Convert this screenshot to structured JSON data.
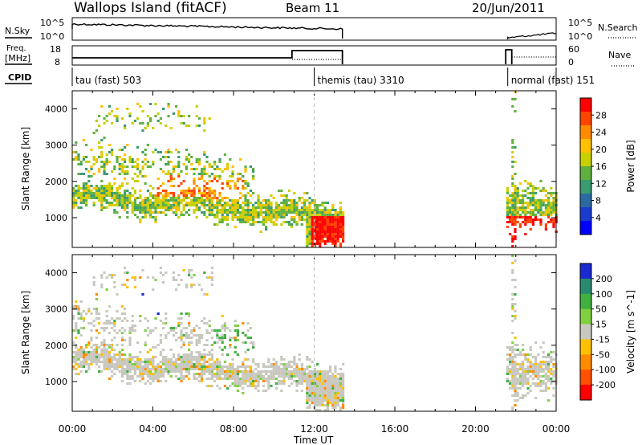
{
  "header": {
    "station": "Wallops Island (fitACF)",
    "beam": "Beam 11",
    "date": "20/Jun/2011"
  },
  "top_panels": {
    "nsky_label": "N.Sky",
    "nsearch_label": "N.Search",
    "log_top": "10^5",
    "log_bottom": "10^0",
    "freq_label": "Freq.",
    "freq_unit": "[MHz]",
    "freq_ticks": [
      "18",
      "8"
    ],
    "nave_label": "Nave",
    "nave_ticks": [
      "60",
      "0"
    ],
    "cpid_label": "CPID",
    "cpid_segments": [
      {
        "label": "tau (fast) 503",
        "start_h": 0,
        "end_h": 12
      },
      {
        "label": "themis (tau) 3310",
        "start_h": 12,
        "end_h": 21.6
      },
      {
        "label": "normal (fast) 151",
        "start_h": 21.6,
        "end_h": 24
      }
    ]
  },
  "axes": {
    "ylabel": "Slant Range [km]",
    "yticks": [
      "4000",
      "3000",
      "2000",
      "1000"
    ],
    "xticks": [
      "00:00",
      "04:00",
      "08:00",
      "12:00",
      "16:00",
      "20:00",
      "00:00"
    ],
    "xlabel": "Time UT"
  },
  "power_scale": {
    "label": "Power [dB]",
    "ticks": [
      "28",
      "24",
      "20",
      "16",
      "12",
      "8",
      "4"
    ],
    "colors": [
      "#ff0000",
      "#ff4400",
      "#ff8c00",
      "#ffc000",
      "#c8d000",
      "#60b040",
      "#3a9a70",
      "#2a6aa0",
      "#1a3ad0",
      "#0000ff"
    ]
  },
  "velocity_scale": {
    "label": "Velocity [m s^-1]",
    "ticks": [
      "200",
      "100",
      "50",
      "15",
      "-15",
      "-50",
      "-100",
      "-200"
    ],
    "colors": [
      "#1a2ad0",
      "#2a8a70",
      "#40b040",
      "#80d040",
      "#c8c8c0",
      "#ffc000",
      "#ff8c00",
      "#ff5000",
      "#ff0000"
    ]
  },
  "chart_data": [
    {
      "type": "heatmap",
      "title": "Power",
      "xlabel": "Time UT",
      "ylabel": "Slant Range [km]",
      "xlim": [
        0,
        24
      ],
      "ylim": [
        180,
        4500
      ],
      "colorbar": "Power [dB]",
      "regions": [
        {
          "t0": 0.0,
          "t1": 13.4,
          "r_center": 1600,
          "r_width": 900,
          "level": "medium"
        },
        {
          "t0": 4.0,
          "t1": 8.5,
          "r_center": 1900,
          "r_width": 400,
          "level": "high"
        },
        {
          "t0": 11.8,
          "t1": 13.4,
          "r_center": 600,
          "r_width": 700,
          "level": "high"
        },
        {
          "t0": 21.6,
          "t1": 24.0,
          "r_center": 1200,
          "r_width": 1200,
          "level": "medium"
        }
      ]
    },
    {
      "type": "heatmap",
      "title": "Velocity",
      "xlabel": "Time UT",
      "ylabel": "Slant Range [km]",
      "xlim": [
        0,
        24
      ],
      "ylim": [
        180,
        4500
      ],
      "colorbar": "Velocity [m s^-1]",
      "regions": [
        {
          "t0": 0.0,
          "t1": 13.4,
          "r_center": 1500,
          "r_width": 1000,
          "level": "near zero"
        },
        {
          "t0": 3.3,
          "t1": 4.3,
          "r_center": 3200,
          "r_width": 400,
          "level": "+200"
        },
        {
          "t0": 21.6,
          "t1": 24.0,
          "r_center": 1200,
          "r_width": 1200,
          "level": "near zero"
        }
      ]
    }
  ]
}
